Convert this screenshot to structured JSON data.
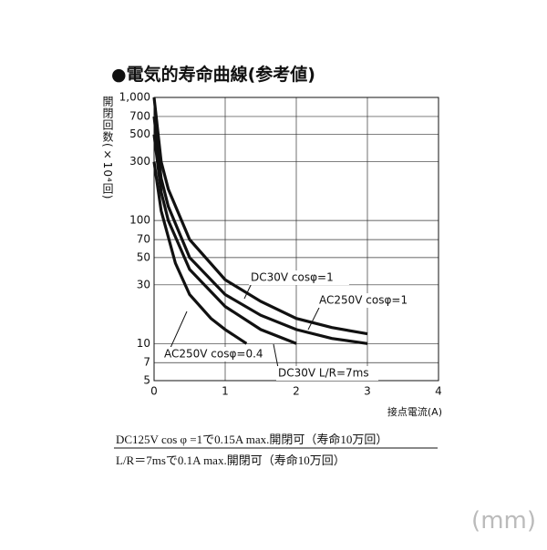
{
  "chart_data": {
    "type": "line",
    "title": "●電気的寿命曲線(参考値)",
    "y_label": "開閉回数(×10⁴回)",
    "x_label": "接点電流(A)",
    "log_y": true,
    "grid": true,
    "xlim": [
      0,
      4
    ],
    "xticks": [
      0,
      1,
      2,
      3,
      4
    ],
    "ylim": [
      5,
      1000
    ],
    "yticks": [
      {
        "value": 1000,
        "label": "1,000"
      },
      700,
      500,
      300,
      100,
      70,
      50,
      30,
      10,
      7,
      5
    ],
    "series": [
      {
        "name": "DC30V  cosφ=1",
        "color": "#111111",
        "x": [
          0,
          0.1,
          0.2,
          0.5,
          1,
          1.5,
          2,
          2.5,
          3
        ],
        "values": [
          1000,
          300,
          180,
          70,
          33,
          22,
          16,
          13.5,
          12
        ]
      },
      {
        "name": "AC250V  cosφ=1",
        "color": "#111111",
        "x": [
          0,
          0.1,
          0.2,
          0.5,
          1,
          1.5,
          2,
          2.5,
          3
        ],
        "values": [
          700,
          220,
          130,
          50,
          25,
          17,
          13,
          11,
          10
        ]
      },
      {
        "name": "AC250V  cosφ=0.4",
        "color": "#111111",
        "x": [
          0,
          0.1,
          0.3,
          0.5,
          0.8,
          1,
          1.3
        ],
        "values": [
          300,
          120,
          45,
          25,
          16,
          13,
          10
        ]
      },
      {
        "name": "DC30V L/R=7ms",
        "color": "#111111",
        "x": [
          0,
          0.1,
          0.2,
          0.5,
          1,
          1.5,
          2
        ],
        "values": [
          500,
          170,
          100,
          40,
          20,
          13,
          10
        ]
      }
    ]
  },
  "notes": [
    "DC125V  cos φ =1で0.15A  max.開閉可（寿命10万回）",
    "L/R＝7msで0.1A  max.開閉可（寿命10万回）"
  ],
  "unit_label": "(mm)"
}
